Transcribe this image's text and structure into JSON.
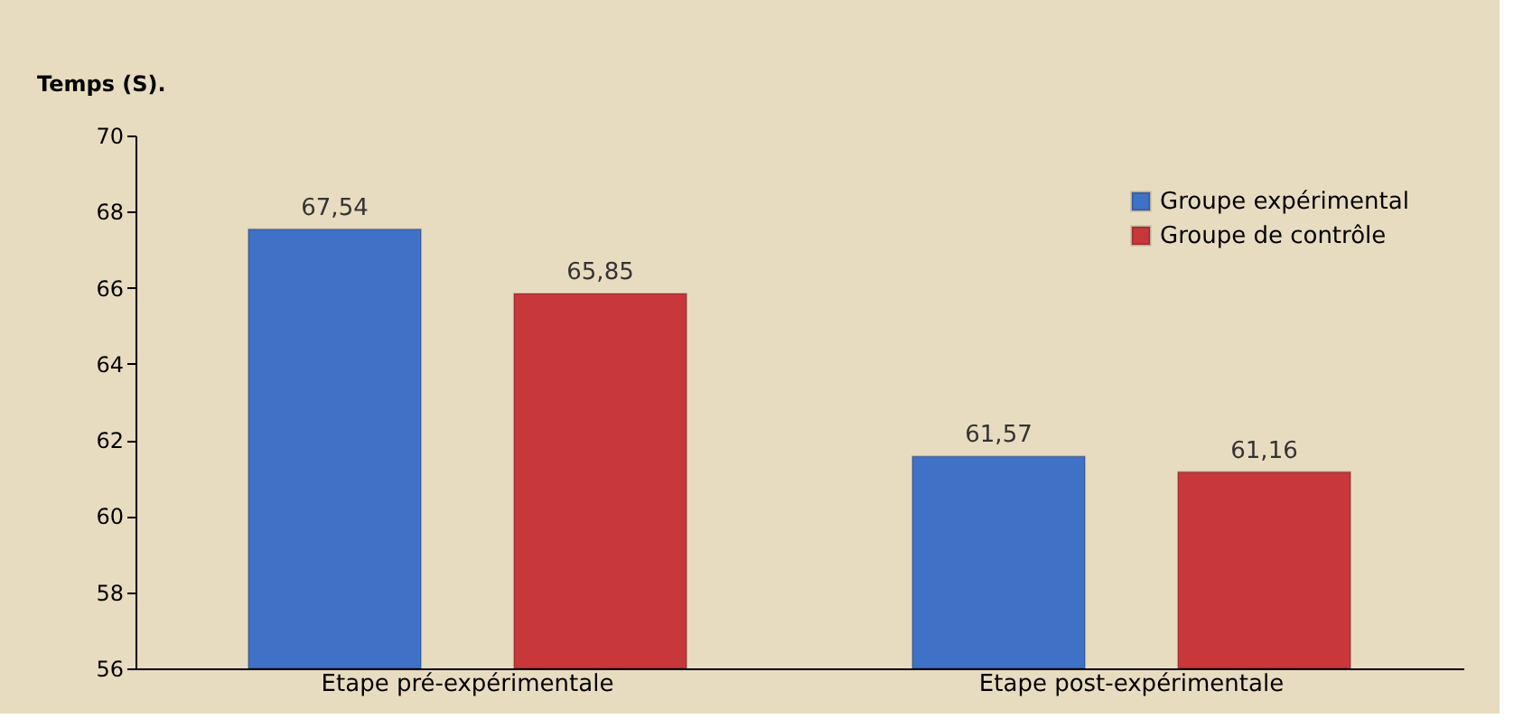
{
  "chart_data": {
    "type": "bar",
    "ylabel": "Temps (S).",
    "categories": [
      "Etape pré-expérimentale",
      "Etape post-expérimentale"
    ],
    "series": [
      {
        "name": "Groupe expérimental",
        "color": "#3f72c6",
        "values": [
          67.54,
          61.57
        ],
        "value_labels": [
          "67,54",
          "61,57"
        ]
      },
      {
        "name": "Groupe de contrôle",
        "color": "#c8373a",
        "values": [
          65.85,
          61.16
        ],
        "value_labels": [
          "65,85",
          "61,16"
        ]
      }
    ],
    "ylim": [
      56,
      70
    ],
    "yticks": [
      56,
      58,
      60,
      62,
      64,
      66,
      68,
      70
    ],
    "grid": false,
    "legend": "top right"
  }
}
